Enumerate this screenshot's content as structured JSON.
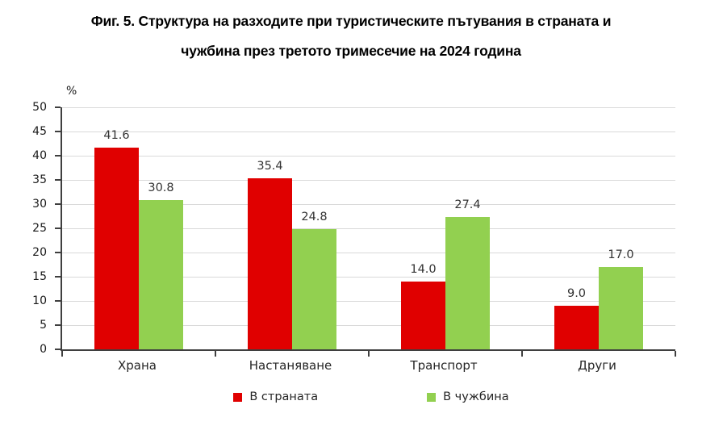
{
  "figure": {
    "title_line1": "Фиг. 5. Структура на разходите при туристическите пътувания в страната и",
    "title_line2": "чужбина през третото тримесечие на 2024 година"
  },
  "chart_data": {
    "type": "bar",
    "title": "Фиг. 5. Структура на разходите при туристическите пътувания в страната и чужбина през третото тримесечие на 2024 година",
    "categories": [
      "Храна",
      "Настаняване",
      "Транспорт",
      "Други"
    ],
    "series": [
      {
        "name": "В страната",
        "color": "#e00000",
        "values": [
          41.6,
          35.4,
          14.0,
          9.0
        ]
      },
      {
        "name": "В чужбина",
        "color": "#92d050",
        "values": [
          30.8,
          24.8,
          27.4,
          17.0
        ]
      }
    ],
    "xlabel": "",
    "ylabel": "%",
    "ylim": [
      0,
      50
    ],
    "ytick_step": 5,
    "grid": true,
    "gridline_color": "#d9d9d9",
    "axis_color": "#3f3f3f",
    "value_labels_decimals": 1,
    "legend_position": "bottom"
  }
}
